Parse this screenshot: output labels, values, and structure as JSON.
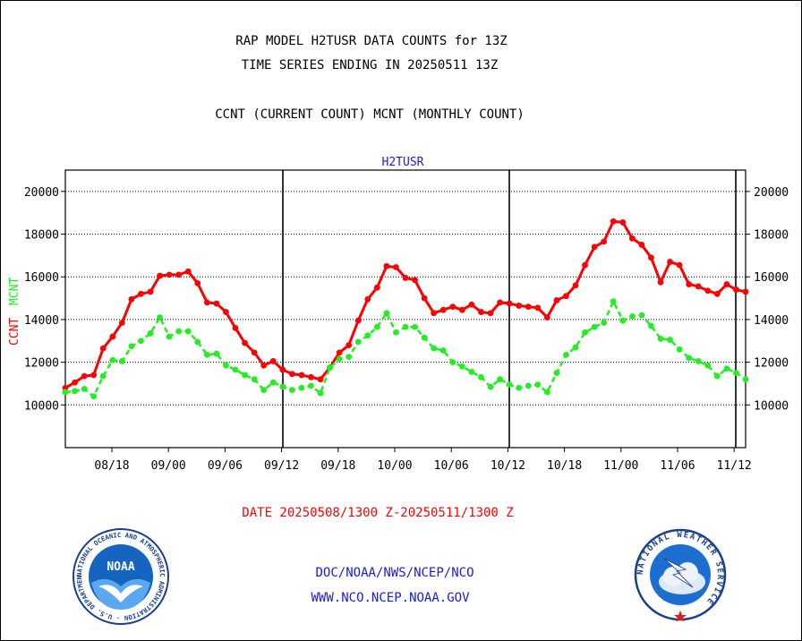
{
  "header": {
    "title_line1": "RAP MODEL H2TUSR DATA COUNTS for 13Z",
    "title_line2": "TIME SERIES ENDING IN 20250511 13Z",
    "subtitle": "CCNT (CURRENT COUNT) MCNT (MONTHLY COUNT)"
  },
  "footer": {
    "date_range": "DATE 20250508/1300 Z-20250511/1300 Z",
    "org": "DOC/NOAA/NWS/NCEP/NCO",
    "url": "WWW.NCO.NCEP.NOAA.GOV",
    "noaa_logo_text": "NOAA",
    "noaa_ring_text": "NATIONAL OCEANIC AND ATMOSPHERIC ADMINISTRATION · U.S. DEPARTMENT OF COMMERCE",
    "nws_ring_text": "NATIONAL WEATHER SERVICE"
  },
  "colors": {
    "ccnt": "#ff0000",
    "mcnt": "#22ee22",
    "text_blue": "#1a1ae6",
    "axis": "#000000"
  },
  "chart_data": {
    "type": "line",
    "title": "H2TUSR",
    "ylabel_ccnt": "CCNT",
    "ylabel_mcnt": "MCNT",
    "ylim": [
      8000,
      21000
    ],
    "yticks": [
      10000,
      12000,
      14000,
      16000,
      18000,
      20000
    ],
    "xticks": [
      "08/18",
      "09/00",
      "09/06",
      "09/12",
      "09/18",
      "10/00",
      "10/06",
      "10/12",
      "10/18",
      "11/00",
      "11/06",
      "11/12"
    ],
    "grid": true,
    "series": [
      {
        "name": "CCNT",
        "color": "#ff0000",
        "values": [
          10800,
          11050,
          11350,
          11400,
          12650,
          13200,
          13850,
          14950,
          15200,
          15300,
          16050,
          16100,
          16100,
          16250,
          15700,
          14800,
          14750,
          14350,
          13600,
          12900,
          12450,
          11850,
          12050,
          11650,
          11450,
          11400,
          11300,
          11200,
          11750,
          12450,
          12800,
          13950,
          14950,
          15500,
          16500,
          16450,
          15950,
          15850,
          15000,
          14300,
          14450,
          14600,
          14450,
          14700,
          14350,
          14300,
          14800,
          14750,
          14650,
          14600,
          14550,
          14100,
          14900,
          15100,
          15600,
          16550,
          17400,
          17650,
          18600,
          18550,
          17800,
          17500,
          16900,
          15750,
          16700,
          16550,
          15650,
          15550,
          15350,
          15200,
          15650,
          15400,
          15300
        ]
      },
      {
        "name": "MCNT",
        "color": "#22ee22",
        "values": [
          10600,
          10650,
          10750,
          10400,
          11350,
          12100,
          12050,
          12750,
          13000,
          13350,
          14100,
          13200,
          13450,
          13450,
          12950,
          12350,
          12400,
          11850,
          11650,
          11400,
          11200,
          10700,
          11050,
          10850,
          10700,
          10800,
          10900,
          10550,
          11750,
          12150,
          12250,
          12950,
          13250,
          13650,
          14300,
          13400,
          13650,
          13650,
          13150,
          12650,
          12550,
          12000,
          11800,
          11550,
          11300,
          10850,
          11200,
          10950,
          10800,
          10900,
          10950,
          10600,
          11500,
          12350,
          12700,
          13400,
          13650,
          13850,
          14850,
          13950,
          14150,
          14200,
          13700,
          13100,
          13050,
          12600,
          12200,
          12050,
          11850,
          11350,
          11700,
          11500,
          11200
        ]
      }
    ]
  }
}
